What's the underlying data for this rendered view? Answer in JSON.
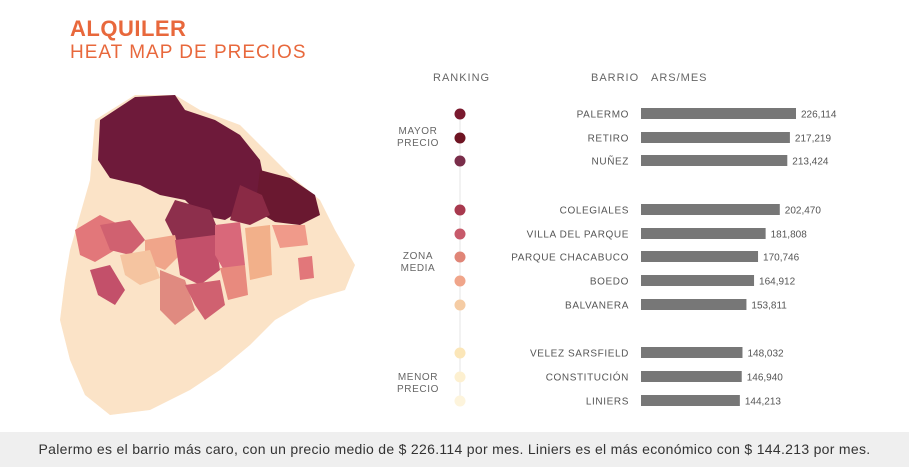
{
  "title": "ALQUILER",
  "subtitle": "HEAT MAP DE PRECIOS",
  "headers": {
    "ranking": "RANKING",
    "barrio": "BARRIO",
    "ars": "ARS/MES"
  },
  "groups": {
    "high": "MAYOR\nPRECIO",
    "mid": "ZONA\nMEDIA",
    "low": "MENOR\nPRECIO"
  },
  "footer": "Palermo es el barrio más caro, con un precio medio de $ 226.114 por mes. Liniers es el más económico con $ 144.213 por mes.",
  "colors": {
    "accent": "#e8683c",
    "bar": "#777777",
    "base": "#fbe3c7"
  },
  "chart_data": {
    "type": "bar",
    "orientation": "horizontal",
    "categories": [
      "PALERMO",
      "RETIRO",
      "NUÑEZ",
      "COLEGIALES",
      "VILLA DEL PARQUE",
      "PARQUE CHACABUCO",
      "BOEDO",
      "BALVANERA",
      "VELEZ SARSFIELD",
      "CONSTITUCIÓN",
      "LINIERS"
    ],
    "values": [
      226114,
      217219,
      213424,
      202470,
      181808,
      170746,
      164912,
      153811,
      148032,
      146940,
      144213
    ],
    "value_labels": [
      "226,114",
      "217,219",
      "213,424",
      "202,470",
      "181,808",
      "170,746",
      "164,912",
      "153,811",
      "148,032",
      "146,940",
      "144,213"
    ],
    "rank_colors": [
      "#7a1a2f",
      "#6e1422",
      "#7a2d4a",
      "#a8394e",
      "#c75a6b",
      "#e08577",
      "#f0a58a",
      "#f5cca4",
      "#fbe6b8",
      "#fdf0d0",
      "#fdf4dc"
    ],
    "xlim": [
      0,
      226114
    ]
  }
}
